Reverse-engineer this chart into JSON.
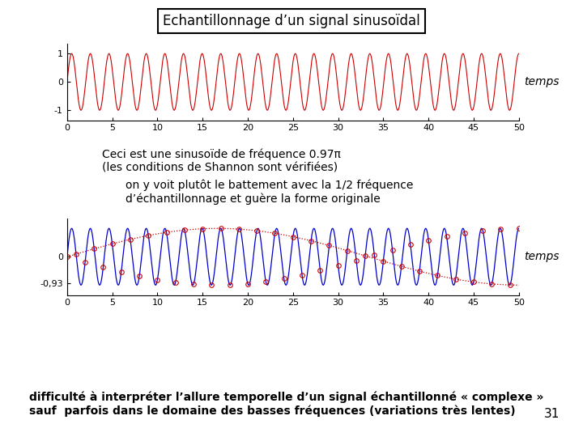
{
  "title": "Echantillonnage d’un signal sinusoïdal",
  "freq_signal": 0.97,
  "t_max": 50,
  "text1_line1": "Ceci est une sinusoïde de fréquence 0.97π",
  "text1_line2": "(les conditions de Shannon sont vérifiées)",
  "text2_line1": "on y voit plutôt le battement avec la 1/2 fréquence",
  "text2_line2": "d’échantillonnage et guère la forme originale",
  "text3_line1": "difficulté à interpréter l’allure temporelle d’un signal échantillonné « complexe »",
  "text3_line2": "sauf  parfois dans le domaine des basses fréquences (variations très lentes)",
  "page_number": "31",
  "bg_color": "#ffffff",
  "signal_color": "#cc0000",
  "recon_color": "#0000cc",
  "sample_color": "#cc0000",
  "dotted_color": "#cc0000",
  "temps_label": "temps",
  "plot2_ytick_label": "-0,93",
  "plot2_ytick_val": -0.93
}
